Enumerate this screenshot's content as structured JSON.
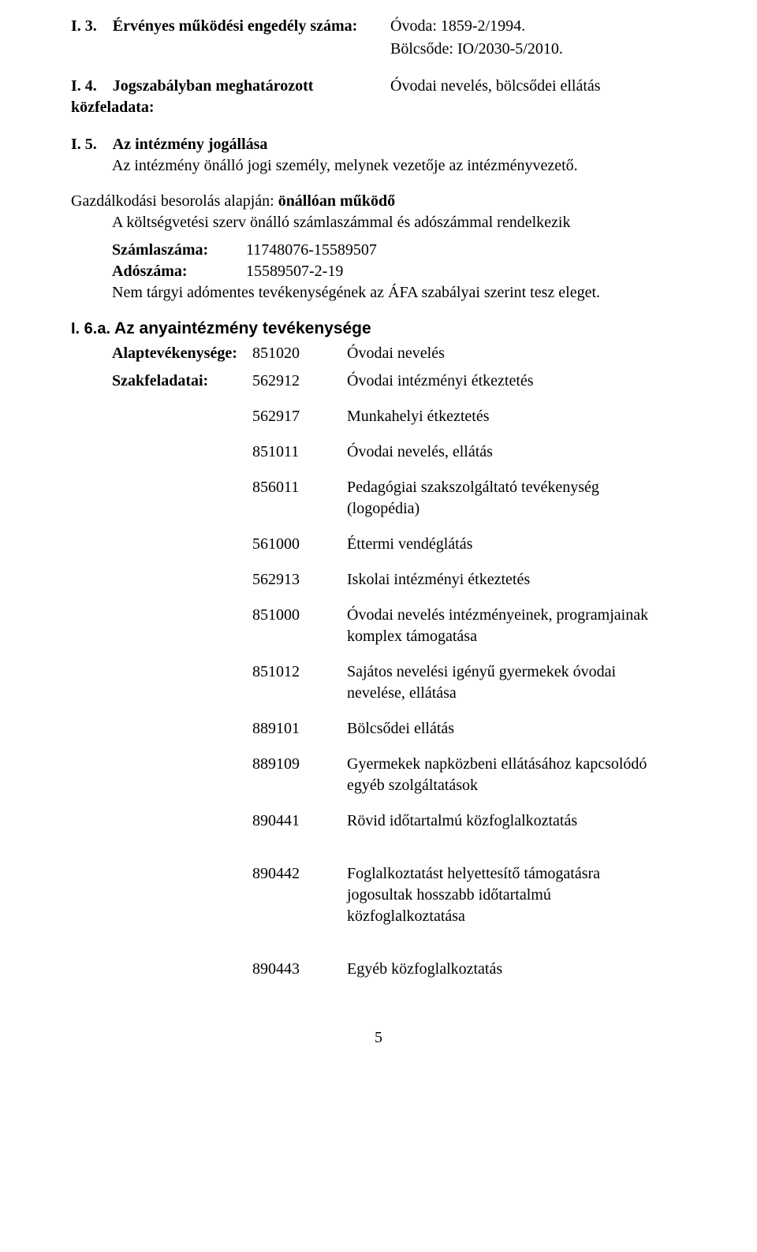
{
  "i3": {
    "num": "I. 3.",
    "label": "Érvényes működési engedély száma:",
    "val1": "Óvoda: 1859-2/1994.",
    "val2": "Bölcsőde: IO/2030-5/2010."
  },
  "i4": {
    "num": "I. 4.",
    "label": "Jogszabályban meghatározott közfeladata:",
    "val": "Óvodai nevelés, bölcsődei ellátás"
  },
  "i5": {
    "num": "I. 5.",
    "label": "Az intézmény jogállása",
    "line": "Az intézmény önálló jogi személy, melynek vezetője az intézményvezető."
  },
  "gazd": {
    "line1a": "Gazdálkodási besorolás alapján:",
    "line1b": " önállóan működő",
    "line2": "A költségvetési szerv önálló számlaszámmal és adószámmal rendelkezik"
  },
  "szamla": {
    "k1": "Számlaszáma:",
    "v1": "11748076-15589507",
    "k2": "Adószáma:",
    "v2": "15589507-2-19",
    "line": "Nem tárgyi adómentes tevékenységének az ÁFA szabályai szerint tesz eleget."
  },
  "i6a": {
    "num": "I. 6.a.",
    "title": "Az anyaintézmény tevékenysége",
    "alap_label": "Alaptevékenysége:",
    "alap_code": "851020",
    "alap_desc": "Óvodai nevelés",
    "szak_label": "Szakfeladatai:",
    "items": [
      {
        "code": "562912",
        "desc": "Óvodai intézményi étkeztetés"
      },
      {
        "code": "562917",
        "desc": "Munkahelyi étkeztetés"
      },
      {
        "code": "851011",
        "desc": "Óvodai nevelés, ellátás"
      },
      {
        "code": "856011",
        "desc": "Pedagógiai szakszolgáltató tevékenység (logopédia)"
      },
      {
        "code": "561000",
        "desc": "Éttermi vendéglátás"
      },
      {
        "code": "562913",
        "desc": "Iskolai intézményi étkeztetés"
      },
      {
        "code": "851000",
        "desc": "Óvodai nevelés intézményeinek, programjainak komplex támogatása"
      },
      {
        "code": "851012",
        "desc": "Sajátos nevelési igényű gyermekek óvodai nevelése, ellátása"
      },
      {
        "code": "889101",
        "desc": "Bölcsődei ellátás"
      },
      {
        "code": "889109",
        "desc": "Gyermekek napközbeni ellátásához kapcsolódó egyéb szolgáltatások"
      },
      {
        "code": "890441",
        "desc": "Rövid időtartalmú közfoglalkoztatás"
      },
      {
        "code": "890442",
        "desc": "Foglalkoztatást helyettesítő támogatásra jogosultak hosszabb időtartalmú közfoglalkoztatása"
      },
      {
        "code": "890443",
        "desc": "Egyéb közfoglalkoztatás"
      }
    ]
  },
  "page_number": "5"
}
